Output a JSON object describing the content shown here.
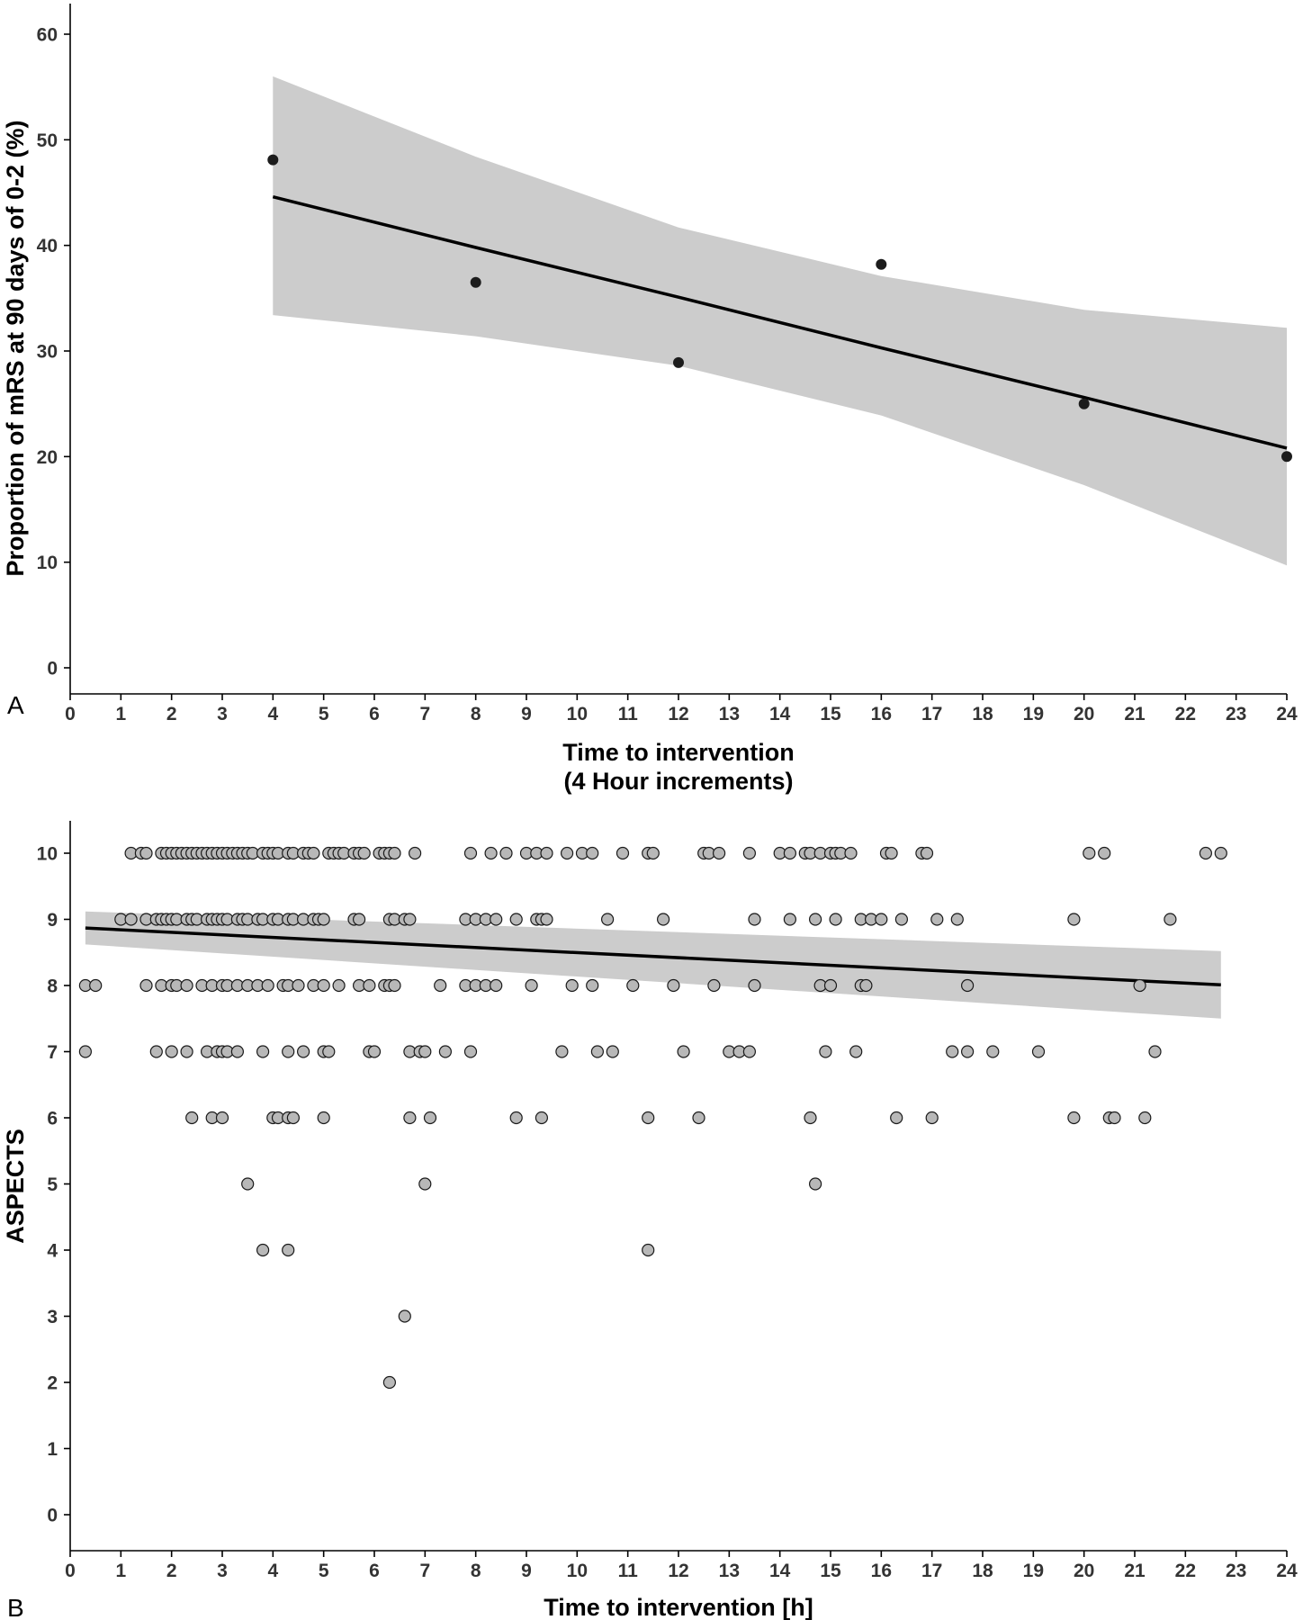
{
  "chart_data": [
    {
      "panel_label": "A",
      "type": "scatter",
      "title": "",
      "xlabel": "Time to intervention",
      "xlabel_line2": "(4 Hour increments)",
      "ylabel": "Proportion of mRS at 90 days of 0-2 (%)",
      "xlim": [
        0,
        24
      ],
      "ylim": [
        -2,
        63
      ],
      "x_ticks": [
        0,
        1,
        2,
        3,
        4,
        5,
        6,
        7,
        8,
        9,
        10,
        11,
        12,
        13,
        14,
        15,
        16,
        17,
        18,
        19,
        20,
        21,
        22,
        23,
        24
      ],
      "y_ticks": [
        0,
        10,
        20,
        30,
        40,
        50,
        60
      ],
      "grid": false,
      "legend": "none",
      "colors": {
        "points": "#1c1c1c",
        "line": "#000000",
        "band": "#cccccc"
      },
      "series": [
        {
          "type": "scatter",
          "x": [
            4,
            8,
            12,
            16,
            20,
            24
          ],
          "y": [
            48.1,
            36.5,
            28.9,
            38.2,
            25.0,
            20.0
          ]
        }
      ],
      "fit": {
        "x": [
          4,
          8,
          12,
          16,
          20,
          24
        ],
        "y": [
          44.6,
          39.8,
          35.1,
          30.3,
          25.6,
          20.8
        ],
        "ci_upper": [
          56.0,
          48.4,
          41.7,
          37.1,
          33.9,
          32.2
        ],
        "ci_lower": [
          33.4,
          31.4,
          28.6,
          23.9,
          17.3,
          9.7
        ]
      }
    },
    {
      "panel_label": "B",
      "type": "scatter",
      "title": "",
      "xlabel": "Time to intervention [h]",
      "ylabel": "ASPECTS",
      "xlim": [
        0,
        24
      ],
      "ylim": [
        -0.5,
        10.5
      ],
      "x_ticks": [
        0,
        1,
        2,
        3,
        4,
        5,
        6,
        7,
        8,
        9,
        10,
        11,
        12,
        13,
        14,
        15,
        16,
        17,
        18,
        19,
        20,
        21,
        22,
        23,
        24
      ],
      "y_ticks": [
        0,
        1,
        2,
        3,
        4,
        5,
        6,
        7,
        8,
        9,
        10
      ],
      "grid": false,
      "legend": "none",
      "colors": {
        "points_fill": "#b8b8b8",
        "points_stroke": "#1a1a1a",
        "line": "#000000",
        "band": "#cccccc"
      },
      "series": [
        {
          "type": "scatter",
          "points": [
            [
              1.2,
              10
            ],
            [
              1.4,
              10
            ],
            [
              1.5,
              10
            ],
            [
              1.8,
              10
            ],
            [
              1.9,
              10
            ],
            [
              2.0,
              10
            ],
            [
              2.1,
              10
            ],
            [
              2.2,
              10
            ],
            [
              2.3,
              10
            ],
            [
              2.4,
              10
            ],
            [
              2.5,
              10
            ],
            [
              2.6,
              10
            ],
            [
              2.7,
              10
            ],
            [
              2.8,
              10
            ],
            [
              2.9,
              10
            ],
            [
              3.0,
              10
            ],
            [
              3.1,
              10
            ],
            [
              3.2,
              10
            ],
            [
              3.3,
              10
            ],
            [
              3.4,
              10
            ],
            [
              3.5,
              10
            ],
            [
              3.6,
              10
            ],
            [
              3.8,
              10
            ],
            [
              3.9,
              10
            ],
            [
              4.0,
              10
            ],
            [
              4.1,
              10
            ],
            [
              4.3,
              10
            ],
            [
              4.4,
              10
            ],
            [
              4.6,
              10
            ],
            [
              4.7,
              10
            ],
            [
              4.8,
              10
            ],
            [
              5.1,
              10
            ],
            [
              5.2,
              10
            ],
            [
              5.3,
              10
            ],
            [
              5.4,
              10
            ],
            [
              5.6,
              10
            ],
            [
              5.7,
              10
            ],
            [
              5.8,
              10
            ],
            [
              6.1,
              10
            ],
            [
              6.2,
              10
            ],
            [
              6.3,
              10
            ],
            [
              6.4,
              10
            ],
            [
              6.8,
              10
            ],
            [
              7.9,
              10
            ],
            [
              8.3,
              10
            ],
            [
              8.6,
              10
            ],
            [
              9.0,
              10
            ],
            [
              9.2,
              10
            ],
            [
              9.4,
              10
            ],
            [
              9.8,
              10
            ],
            [
              10.1,
              10
            ],
            [
              10.3,
              10
            ],
            [
              10.9,
              10
            ],
            [
              11.4,
              10
            ],
            [
              11.5,
              10
            ],
            [
              12.5,
              10
            ],
            [
              12.6,
              10
            ],
            [
              12.8,
              10
            ],
            [
              13.4,
              10
            ],
            [
              14.0,
              10
            ],
            [
              14.2,
              10
            ],
            [
              14.5,
              10
            ],
            [
              14.6,
              10
            ],
            [
              14.8,
              10
            ],
            [
              15.0,
              10
            ],
            [
              15.1,
              10
            ],
            [
              15.2,
              10
            ],
            [
              15.4,
              10
            ],
            [
              16.1,
              10
            ],
            [
              16.2,
              10
            ],
            [
              16.8,
              10
            ],
            [
              16.9,
              10
            ],
            [
              20.1,
              10
            ],
            [
              20.4,
              10
            ],
            [
              22.4,
              10
            ],
            [
              22.7,
              10
            ],
            [
              1.0,
              9
            ],
            [
              1.2,
              9
            ],
            [
              1.5,
              9
            ],
            [
              1.7,
              9
            ],
            [
              1.8,
              9
            ],
            [
              1.9,
              9
            ],
            [
              2.0,
              9
            ],
            [
              2.1,
              9
            ],
            [
              2.3,
              9
            ],
            [
              2.4,
              9
            ],
            [
              2.5,
              9
            ],
            [
              2.7,
              9
            ],
            [
              2.8,
              9
            ],
            [
              2.9,
              9
            ],
            [
              3.0,
              9
            ],
            [
              3.1,
              9
            ],
            [
              3.3,
              9
            ],
            [
              3.4,
              9
            ],
            [
              3.5,
              9
            ],
            [
              3.7,
              9
            ],
            [
              3.8,
              9
            ],
            [
              4.0,
              9
            ],
            [
              4.1,
              9
            ],
            [
              4.3,
              9
            ],
            [
              4.4,
              9
            ],
            [
              4.6,
              9
            ],
            [
              4.8,
              9
            ],
            [
              4.9,
              9
            ],
            [
              5.0,
              9
            ],
            [
              5.6,
              9
            ],
            [
              5.7,
              9
            ],
            [
              6.3,
              9
            ],
            [
              6.4,
              9
            ],
            [
              6.6,
              9
            ],
            [
              6.7,
              9
            ],
            [
              7.8,
              9
            ],
            [
              8.0,
              9
            ],
            [
              8.2,
              9
            ],
            [
              8.4,
              9
            ],
            [
              8.8,
              9
            ],
            [
              9.2,
              9
            ],
            [
              9.3,
              9
            ],
            [
              9.4,
              9
            ],
            [
              10.6,
              9
            ],
            [
              11.7,
              9
            ],
            [
              13.5,
              9
            ],
            [
              14.2,
              9
            ],
            [
              14.7,
              9
            ],
            [
              15.1,
              9
            ],
            [
              15.6,
              9
            ],
            [
              15.8,
              9
            ],
            [
              16.0,
              9
            ],
            [
              16.4,
              9
            ],
            [
              17.1,
              9
            ],
            [
              17.5,
              9
            ],
            [
              19.8,
              9
            ],
            [
              21.7,
              9
            ],
            [
              0.3,
              8
            ],
            [
              0.5,
              8
            ],
            [
              1.5,
              8
            ],
            [
              1.8,
              8
            ],
            [
              2.0,
              8
            ],
            [
              2.1,
              8
            ],
            [
              2.3,
              8
            ],
            [
              2.6,
              8
            ],
            [
              2.8,
              8
            ],
            [
              3.0,
              8
            ],
            [
              3.1,
              8
            ],
            [
              3.3,
              8
            ],
            [
              3.5,
              8
            ],
            [
              3.7,
              8
            ],
            [
              3.9,
              8
            ],
            [
              4.2,
              8
            ],
            [
              4.3,
              8
            ],
            [
              4.5,
              8
            ],
            [
              4.8,
              8
            ],
            [
              5.0,
              8
            ],
            [
              5.3,
              8
            ],
            [
              5.7,
              8
            ],
            [
              5.9,
              8
            ],
            [
              6.2,
              8
            ],
            [
              6.3,
              8
            ],
            [
              6.4,
              8
            ],
            [
              7.3,
              8
            ],
            [
              7.8,
              8
            ],
            [
              8.0,
              8
            ],
            [
              8.2,
              8
            ],
            [
              8.4,
              8
            ],
            [
              9.1,
              8
            ],
            [
              9.9,
              8
            ],
            [
              10.3,
              8
            ],
            [
              11.1,
              8
            ],
            [
              11.9,
              8
            ],
            [
              12.7,
              8
            ],
            [
              13.5,
              8
            ],
            [
              14.8,
              8
            ],
            [
              15.0,
              8
            ],
            [
              15.6,
              8
            ],
            [
              15.7,
              8
            ],
            [
              17.7,
              8
            ],
            [
              21.1,
              8
            ],
            [
              0.3,
              7
            ],
            [
              1.7,
              7
            ],
            [
              2.0,
              7
            ],
            [
              2.3,
              7
            ],
            [
              2.7,
              7
            ],
            [
              2.9,
              7
            ],
            [
              3.0,
              7
            ],
            [
              3.1,
              7
            ],
            [
              3.3,
              7
            ],
            [
              3.8,
              7
            ],
            [
              4.3,
              7
            ],
            [
              4.6,
              7
            ],
            [
              5.0,
              7
            ],
            [
              5.1,
              7
            ],
            [
              5.9,
              7
            ],
            [
              6.0,
              7
            ],
            [
              6.7,
              7
            ],
            [
              6.9,
              7
            ],
            [
              7.0,
              7
            ],
            [
              7.4,
              7
            ],
            [
              7.9,
              7
            ],
            [
              9.7,
              7
            ],
            [
              10.4,
              7
            ],
            [
              10.7,
              7
            ],
            [
              12.1,
              7
            ],
            [
              13.0,
              7
            ],
            [
              13.2,
              7
            ],
            [
              13.4,
              7
            ],
            [
              14.9,
              7
            ],
            [
              15.5,
              7
            ],
            [
              17.4,
              7
            ],
            [
              17.7,
              7
            ],
            [
              18.2,
              7
            ],
            [
              19.1,
              7
            ],
            [
              21.4,
              7
            ],
            [
              2.4,
              6
            ],
            [
              2.8,
              6
            ],
            [
              3.0,
              6
            ],
            [
              4.0,
              6
            ],
            [
              4.1,
              6
            ],
            [
              4.3,
              6
            ],
            [
              4.4,
              6
            ],
            [
              5.0,
              6
            ],
            [
              6.7,
              6
            ],
            [
              7.1,
              6
            ],
            [
              8.8,
              6
            ],
            [
              9.3,
              6
            ],
            [
              11.4,
              6
            ],
            [
              12.4,
              6
            ],
            [
              14.6,
              6
            ],
            [
              16.3,
              6
            ],
            [
              17.0,
              6
            ],
            [
              19.8,
              6
            ],
            [
              20.5,
              6
            ],
            [
              20.6,
              6
            ],
            [
              21.2,
              6
            ],
            [
              3.5,
              5
            ],
            [
              7.0,
              5
            ],
            [
              14.7,
              5
            ],
            [
              3.8,
              4
            ],
            [
              4.3,
              4
            ],
            [
              11.4,
              4
            ],
            [
              6.6,
              3
            ],
            [
              6.3,
              2
            ]
          ]
        }
      ],
      "fit": {
        "x": [
          0.3,
          22.7
        ],
        "y": [
          8.87,
          8.01
        ],
        "ci_upper": [
          9.12,
          8.52
        ],
        "ci_lower": [
          8.62,
          7.5
        ]
      }
    }
  ]
}
